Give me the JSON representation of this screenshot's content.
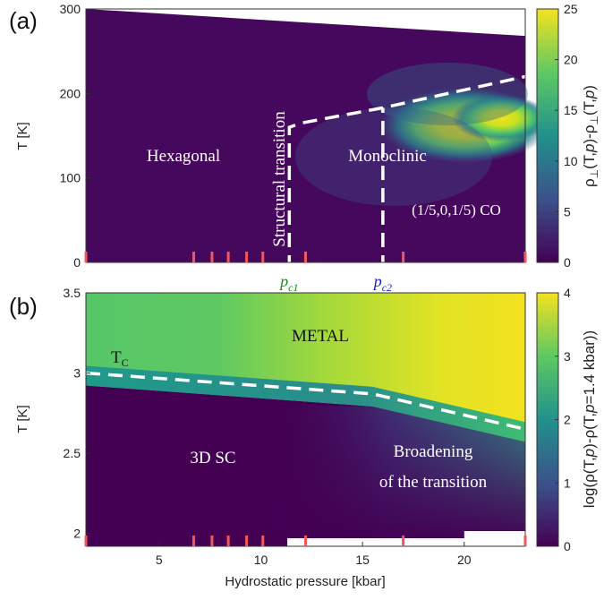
{
  "chart_data": [
    {
      "type": "heatmap",
      "panel_label": "(a)",
      "ylabel": "T [K]",
      "ylim": [
        0,
        300
      ],
      "yticks": [
        "0",
        "100",
        "200",
        "300"
      ],
      "xlim": [
        1.4,
        23
      ],
      "colorbar": {
        "label": "ρ⊥(T,p)-ρ⊥(T,p)",
        "label_parts": [
          "ρ",
          "⊥",
          "(T,",
          "p",
          ")-ρ",
          "⊥",
          "(T,",
          "p",
          ")"
        ],
        "range": [
          0,
          25
        ],
        "ticks": [
          "0",
          "5",
          "10",
          "15",
          "20",
          "25"
        ]
      },
      "upper_boundary_T": [
        {
          "p": 1.4,
          "T": 300
        },
        {
          "p": 23,
          "T": 268
        }
      ],
      "dashed_boundary": [
        {
          "p": 11.4,
          "T": 0
        },
        {
          "p": 11.4,
          "T": 160
        },
        {
          "p": 12.0,
          "T": 165
        },
        {
          "p": 16.0,
          "T": 183
        },
        {
          "p": 23,
          "T": 220
        }
      ],
      "dashed_vertical": [
        {
          "p": 16.0,
          "T": 0
        },
        {
          "p": 16.0,
          "T": 183
        }
      ],
      "pressure_markers": [
        1.4,
        6.7,
        7.6,
        8.4,
        9.3,
        10.1,
        12.2,
        17.0,
        23
      ],
      "critical_pressures": [
        {
          "label": "p",
          "sub": "c1",
          "p": 11.4,
          "color": "#1a8a1a"
        },
        {
          "label": "p",
          "sub": "c2",
          "p": 16.0,
          "color": "#1a1ad0"
        }
      ],
      "annotations": [
        "Hexagonal",
        "Structural transition",
        "Monoclinic",
        "(1/5,0,1/5) CO"
      ]
    },
    {
      "type": "heatmap",
      "panel_label": "(b)",
      "ylabel": "T [K]",
      "xlabel": "Hydrostatic pressure [kbar]",
      "ylim": [
        1.92,
        3.5
      ],
      "yticks": [
        "2",
        "2.5",
        "3",
        "3.5"
      ],
      "xlim": [
        1.4,
        23
      ],
      "xticks": [
        "5",
        "10",
        "15",
        "20"
      ],
      "colorbar": {
        "label": "log(ρ(T,p)-ρ(T,p=1.4 kbar))",
        "label_parts": [
          "log(ρ(T,",
          "p",
          ")-ρ(T,",
          "p",
          "=1.4 kbar))"
        ],
        "range": [
          0,
          4
        ],
        "ticks": [
          "0",
          "1",
          "2",
          "3",
          "4"
        ]
      },
      "tc_line": [
        {
          "p": 1.4,
          "T": 3.0
        },
        {
          "p": 15.5,
          "T": 2.87
        },
        {
          "p": 23,
          "T": 2.65
        }
      ],
      "pressure_markers": [
        1.4,
        6.7,
        7.6,
        8.4,
        9.3,
        10.1,
        12.2,
        17.0,
        23
      ],
      "annotations": {
        "tc": "T",
        "tc_sub": "C",
        "metal": "METAL",
        "sc": "3D SC",
        "broadening_1": "Broadening",
        "broadening_2": "of the transition"
      }
    }
  ]
}
